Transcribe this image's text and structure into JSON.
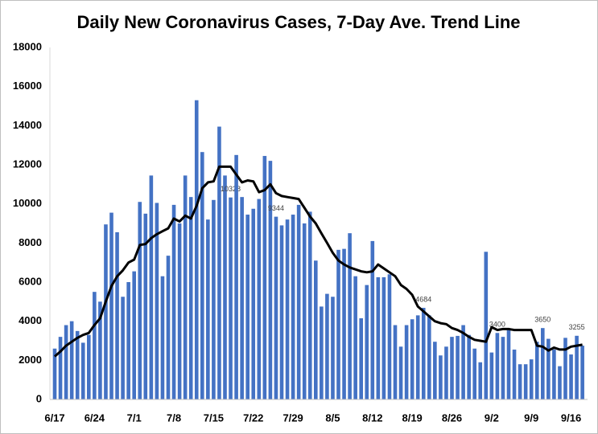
{
  "chart_data": {
    "type": "bar",
    "title": "Daily New Coronavirus Cases, 7-Day Ave. Trend Line",
    "categories": [
      "6/17",
      null,
      null,
      null,
      null,
      null,
      null,
      "6/24",
      null,
      null,
      null,
      null,
      null,
      null,
      "7/1",
      null,
      null,
      null,
      null,
      null,
      null,
      "7/8",
      null,
      null,
      null,
      null,
      null,
      null,
      "7/15",
      null,
      null,
      null,
      null,
      null,
      null,
      "7/22",
      null,
      null,
      null,
      null,
      null,
      null,
      "7/29",
      null,
      null,
      null,
      null,
      null,
      null,
      "8/5",
      null,
      null,
      null,
      null,
      null,
      null,
      "8/12",
      null,
      null,
      null,
      null,
      null,
      null,
      "8/19",
      null,
      null,
      null,
      null,
      null,
      null,
      "8/26",
      null,
      null,
      null,
      null,
      null,
      null,
      "9/2",
      null,
      null,
      null,
      null,
      null,
      null,
      "9/9",
      null,
      null,
      null,
      null,
      null,
      null,
      "9/16",
      null,
      null
    ],
    "series": [
      {
        "name": "Daily New Cases",
        "type": "bar",
        "color": "#4472c4",
        "values": [
          2600,
          3200,
          3800,
          4000,
          3500,
          2900,
          3300,
          5500,
          5000,
          8950,
          9550,
          8550,
          5250,
          6000,
          6550,
          10100,
          9500,
          11450,
          10050,
          6300,
          7350,
          9950,
          9000,
          11450,
          10350,
          15300,
          12650,
          9200,
          10200,
          13950,
          11450,
          10328,
          12500,
          10350,
          9450,
          9750,
          10250,
          12450,
          12200,
          9344,
          8900,
          9200,
          9450,
          9950,
          9000,
          9600,
          7100,
          4750,
          5400,
          5250,
          7650,
          7700,
          8500,
          6300,
          4150,
          5850,
          8100,
          6250,
          6250,
          6400,
          3800,
          2700,
          3800,
          4100,
          4300,
          4684,
          4300,
          2950,
          2250,
          2700,
          3200,
          3250,
          3800,
          3300,
          2600,
          1900,
          7550,
          2400,
          3400,
          3200,
          3550,
          2550,
          1800,
          1800,
          2050,
          2950,
          3650,
          3100,
          2550,
          1700,
          3150,
          2300,
          3255,
          2750
        ],
        "value_labels": [
          null,
          null,
          null,
          null,
          null,
          null,
          null,
          null,
          null,
          null,
          null,
          null,
          null,
          null,
          null,
          null,
          null,
          null,
          null,
          null,
          null,
          null,
          null,
          null,
          null,
          null,
          null,
          null,
          null,
          null,
          null,
          "10328",
          null,
          null,
          null,
          null,
          null,
          null,
          null,
          "9344",
          null,
          null,
          null,
          null,
          null,
          null,
          null,
          null,
          null,
          null,
          null,
          null,
          null,
          null,
          null,
          null,
          null,
          null,
          null,
          null,
          null,
          null,
          null,
          null,
          null,
          "4684",
          null,
          null,
          null,
          null,
          null,
          null,
          null,
          null,
          null,
          null,
          null,
          null,
          "3400",
          null,
          null,
          null,
          null,
          null,
          null,
          null,
          "3650",
          null,
          null,
          null,
          null,
          null,
          "3255",
          null
        ]
      },
      {
        "name": "7-Day Average",
        "type": "line",
        "color": "#000000",
        "values": [
          2200,
          2450,
          2750,
          2950,
          3150,
          3300,
          3400,
          3800,
          4150,
          5000,
          5800,
          6300,
          6600,
          7000,
          7150,
          7900,
          7950,
          8250,
          8450,
          8600,
          8750,
          9250,
          9100,
          9400,
          9250,
          9900,
          10800,
          11100,
          11150,
          11900,
          11900,
          11900,
          11500,
          11100,
          11200,
          11150,
          10600,
          10700,
          11000,
          10550,
          10400,
          10350,
          10300,
          10250,
          9800,
          9350,
          9000,
          8500,
          8000,
          7500,
          7100,
          6900,
          6750,
          6650,
          6550,
          6500,
          6550,
          6900,
          6700,
          6500,
          6300,
          5850,
          5650,
          5350,
          4750,
          4500,
          4250,
          4000,
          3900,
          3850,
          3650,
          3550,
          3400,
          3200,
          3050,
          3000,
          2950,
          3700,
          3550,
          3600,
          3600,
          3550,
          3550,
          3550,
          3550,
          2750,
          2700,
          2500,
          2650,
          2550,
          2550,
          2700,
          2750,
          2800
        ]
      }
    ],
    "ylim": [
      0,
      18000
    ],
    "yticks": [
      0,
      2000,
      4000,
      6000,
      8000,
      10000,
      12000,
      14000,
      16000,
      18000
    ],
    "grid": false
  }
}
